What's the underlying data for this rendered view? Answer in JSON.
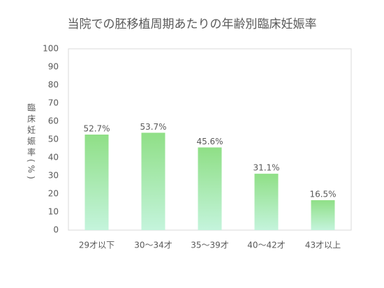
{
  "chart_data": {
    "type": "bar",
    "title": "当院での胚移植周期あたりの年齢別臨床妊娠率",
    "y_label": "臨床妊娠率(%)",
    "categories": [
      "29才以下",
      "30〜34才",
      "35〜39才",
      "40〜42才",
      "43才以上"
    ],
    "values": [
      52.7,
      53.7,
      45.6,
      31.1,
      16.5
    ],
    "value_labels": [
      "52.7%",
      "53.7%",
      "45.6%",
      "31.1%",
      "16.5%"
    ],
    "color": "#8fdf86",
    "gradient_to": "#c4f4dc",
    "ylim": [
      0,
      100
    ],
    "yticks": [
      0,
      10,
      20,
      30,
      40,
      50,
      60,
      70,
      80,
      90,
      100
    ],
    "grid": false
  }
}
